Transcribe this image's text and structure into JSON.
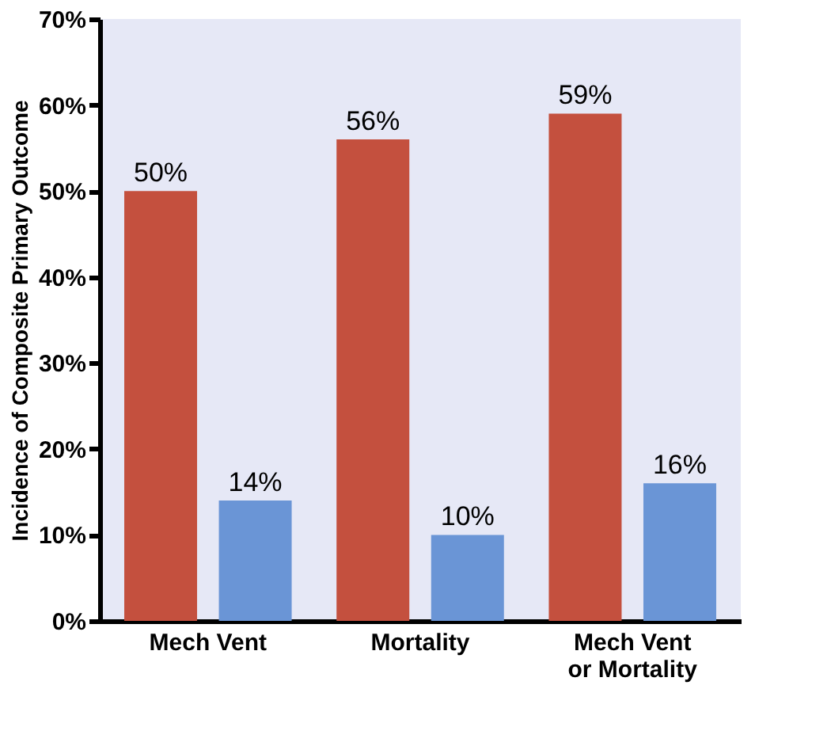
{
  "chart_data": {
    "type": "bar",
    "ylabel": "Incidence of Composite Primary Outcome",
    "categories": [
      "Mech Vent",
      "Mortality",
      "Mech Vent or Mortality"
    ],
    "series": [
      {
        "color": "#c4503e",
        "values": [
          50,
          56,
          59
        ],
        "value_labels": [
          "50%",
          "56%",
          "59%"
        ]
      },
      {
        "color": "#6a95d6",
        "values": [
          14,
          10,
          16
        ],
        "value_labels": [
          "14%",
          "10%",
          "16%"
        ]
      }
    ],
    "ylim": [
      0,
      70
    ],
    "yticks": [
      {
        "value": 0,
        "label": "0%"
      },
      {
        "value": 10,
        "label": "10%"
      },
      {
        "value": 20,
        "label": "20%"
      },
      {
        "value": 30,
        "label": "30%"
      },
      {
        "value": 40,
        "label": "40%"
      },
      {
        "value": 50,
        "label": "50%"
      },
      {
        "value": 60,
        "label": "60%"
      },
      {
        "value": 70,
        "label": "70%"
      }
    ],
    "grid": false,
    "legend": false
  }
}
